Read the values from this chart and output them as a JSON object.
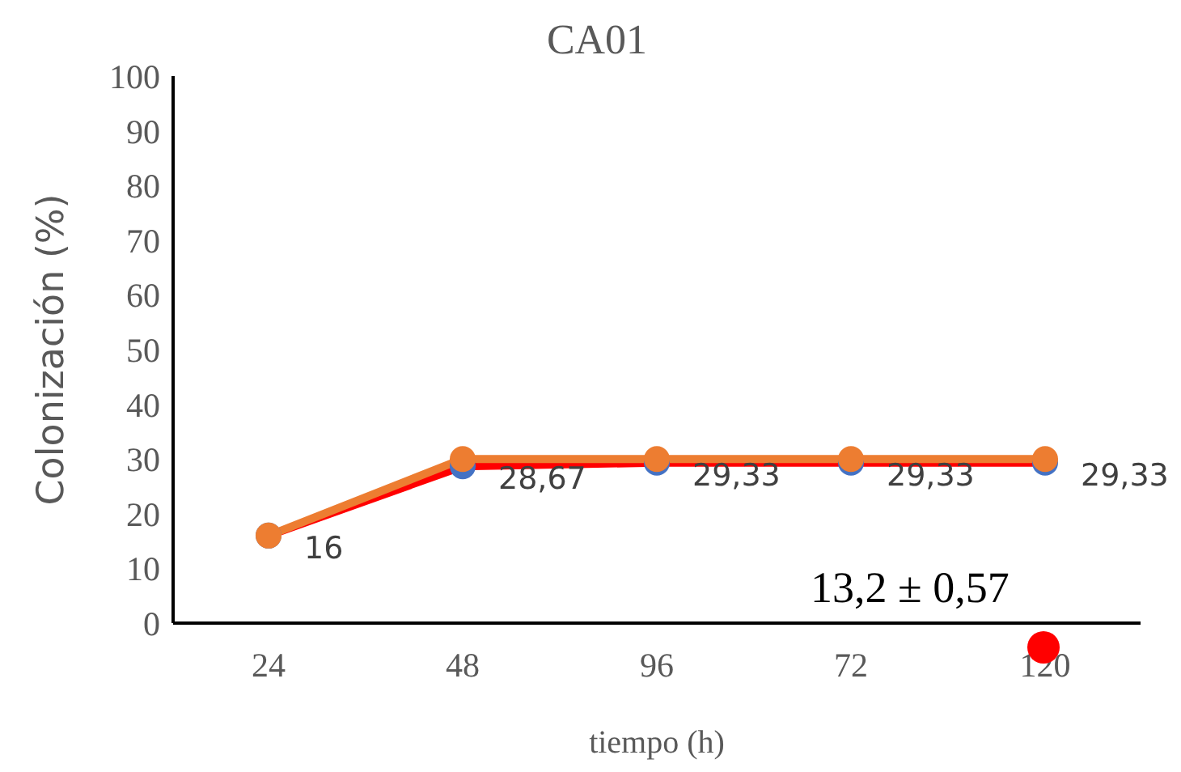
{
  "chart_data": {
    "type": "line",
    "title": "CA01",
    "xlabel": "tiempo (h)",
    "ylabel": "Colonización (%)",
    "categories": [
      "24",
      "48",
      "96",
      "72",
      "120"
    ],
    "series": [
      {
        "color": "#ff0000",
        "values": [
          16,
          28.67,
          29.33,
          29.33,
          29.33
        ],
        "marker": "none"
      },
      {
        "type": "scatter",
        "color": "#4472c4",
        "values": [
          16,
          28.67,
          29.33,
          29.33,
          29.33
        ],
        "marker": "circle",
        "value_labels": [
          "16",
          "28,67",
          "29,33",
          "29,33",
          "29,33"
        ]
      },
      {
        "color": "#ed7d31",
        "values": [
          16,
          30,
          30,
          30,
          30
        ],
        "marker": "circle"
      }
    ],
    "ylim": [
      0,
      100
    ],
    "yticks": [
      0,
      10,
      20,
      30,
      40,
      50,
      60,
      70,
      80,
      90,
      100
    ],
    "annotations": [
      "13,2 ± 0,57"
    ],
    "grid": false,
    "legend": false
  }
}
